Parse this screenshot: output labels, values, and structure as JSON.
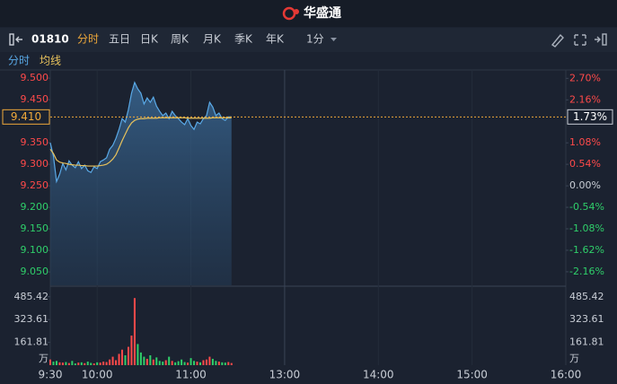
{
  "header": {
    "brand": "华盛通"
  },
  "toolbar": {
    "symbol": "01810",
    "tabs": [
      "分时",
      "五日",
      "日K",
      "周K",
      "月K",
      "季K",
      "年K"
    ],
    "interval": "1分"
  },
  "chart_data": [
    {
      "type": "line",
      "x": [
        0,
        2,
        4,
        6,
        8,
        10,
        12,
        14,
        16,
        18,
        20,
        22,
        24,
        26,
        28,
        30,
        32,
        34,
        36,
        38,
        40,
        42,
        44,
        46,
        48,
        50,
        52,
        54,
        56,
        58,
        60,
        62,
        64,
        66,
        68,
        70,
        72,
        74,
        76,
        78,
        80,
        82,
        84,
        86,
        88,
        90,
        92,
        94,
        96,
        98,
        100,
        102,
        104,
        106,
        108,
        110,
        112,
        114,
        116
      ],
      "xlim": [
        0,
        330
      ],
      "xticks": [
        {
          "value": 0,
          "label": "9:30"
        },
        {
          "value": 30,
          "label": "10:00"
        },
        {
          "value": 90,
          "label": "11:00"
        },
        {
          "value": 150,
          "label": "13:00"
        },
        {
          "value": 210,
          "label": "14:00"
        },
        {
          "value": 270,
          "label": "15:00"
        },
        {
          "value": 330,
          "label": "16:00"
        }
      ],
      "ylim": [
        9.019,
        9.519
      ],
      "yticks": [
        {
          "value": 9.5,
          "label": "9.500"
        },
        {
          "value": 9.45,
          "label": "9.450"
        },
        {
          "value": 9.35,
          "label": "9.350"
        },
        {
          "value": 9.3,
          "label": "9.300"
        },
        {
          "value": 9.25,
          "label": "9.250"
        },
        {
          "value": 9.2,
          "label": "9.200"
        },
        {
          "value": 9.15,
          "label": "9.150"
        },
        {
          "value": 9.1,
          "label": "9.100"
        },
        {
          "value": 9.05,
          "label": "9.050"
        }
      ],
      "y2lim": [
        -2.5,
        2.91
      ],
      "y2ticks": [
        {
          "value": 2.7,
          "label": "2.70%"
        },
        {
          "value": 2.16,
          "label": "2.16%"
        },
        {
          "value": 1.08,
          "label": "1.08%"
        },
        {
          "value": 0.54,
          "label": "0.54%"
        },
        {
          "value": 0,
          "label": "0.00%"
        },
        {
          "value": -0.54,
          "label": "-0.54%"
        },
        {
          "value": -1.08,
          "label": "-1.08%"
        },
        {
          "value": -1.62,
          "label": "-1.62%"
        },
        {
          "value": -2.16,
          "label": "-2.16%"
        }
      ],
      "last_price": {
        "value": 9.41,
        "label": "9.410"
      },
      "last_change": {
        "value": 1.73,
        "label": "1.73%"
      },
      "up_color": "#ff4a4a",
      "down_color": "#2fcf6a",
      "flat_color": "#c9ced6",
      "series": [
        {
          "name": "分时",
          "color": "#5aaae8",
          "values": [
            9.35,
            9.319,
            9.26,
            9.277,
            9.302,
            9.287,
            9.308,
            9.298,
            9.292,
            9.306,
            9.29,
            9.298,
            9.285,
            9.281,
            9.294,
            9.29,
            9.306,
            9.31,
            9.315,
            9.335,
            9.344,
            9.36,
            9.381,
            9.406,
            9.398,
            9.427,
            9.465,
            9.49,
            9.475,
            9.465,
            9.44,
            9.454,
            9.444,
            9.456,
            9.435,
            9.423,
            9.413,
            9.419,
            9.406,
            9.423,
            9.413,
            9.406,
            9.398,
            9.392,
            9.406,
            9.39,
            9.381,
            9.398,
            9.394,
            9.406,
            9.413,
            9.444,
            9.433,
            9.413,
            9.419,
            9.406,
            9.402,
            9.41,
            9.41
          ]
        },
        {
          "name": "均线",
          "color": "#e8c25c",
          "values": [
            9.335,
            9.325,
            9.31,
            9.305,
            9.303,
            9.302,
            9.3,
            9.299,
            9.298,
            9.298,
            9.297,
            9.297,
            9.296,
            9.296,
            9.296,
            9.296,
            9.297,
            9.298,
            9.3,
            9.305,
            9.312,
            9.322,
            9.338,
            9.355,
            9.37,
            9.385,
            9.396,
            9.402,
            9.405,
            9.406,
            9.406,
            9.407,
            9.407,
            9.407,
            9.407,
            9.408,
            9.408,
            9.408,
            9.408,
            9.408,
            9.408,
            9.408,
            9.408,
            9.408,
            9.407,
            9.407,
            9.407,
            9.407,
            9.407,
            9.407,
            9.407,
            9.407,
            9.408,
            9.408,
            9.408,
            9.408,
            9.408,
            9.408,
            9.408
          ]
        }
      ]
    },
    {
      "type": "bar",
      "x": [
        0,
        2,
        4,
        6,
        8,
        10,
        12,
        14,
        16,
        18,
        20,
        22,
        24,
        26,
        28,
        30,
        32,
        34,
        36,
        38,
        40,
        42,
        44,
        46,
        48,
        50,
        52,
        54,
        56,
        58,
        60,
        62,
        64,
        66,
        68,
        70,
        72,
        74,
        76,
        78,
        80,
        82,
        84,
        86,
        88,
        90,
        92,
        94,
        96,
        98,
        100,
        102,
        104,
        106,
        108,
        110,
        112,
        114,
        116
      ],
      "xlim": [
        0,
        330
      ],
      "values": [
        40,
        25,
        30,
        20,
        18,
        22,
        15,
        30,
        12,
        18,
        20,
        14,
        25,
        16,
        12,
        20,
        18,
        25,
        22,
        40,
        60,
        35,
        80,
        110,
        70,
        130,
        210,
        476,
        150,
        90,
        60,
        45,
        70,
        40,
        55,
        30,
        25,
        35,
        60,
        30,
        20,
        28,
        40,
        22,
        18,
        50,
        30,
        25,
        20,
        35,
        40,
        60,
        45,
        30,
        25,
        20,
        18,
        22,
        15
      ],
      "ylim": [
        0,
        554
      ],
      "yticks": [
        161.81,
        323.61,
        485.42
      ],
      "unit": "万"
    }
  ]
}
